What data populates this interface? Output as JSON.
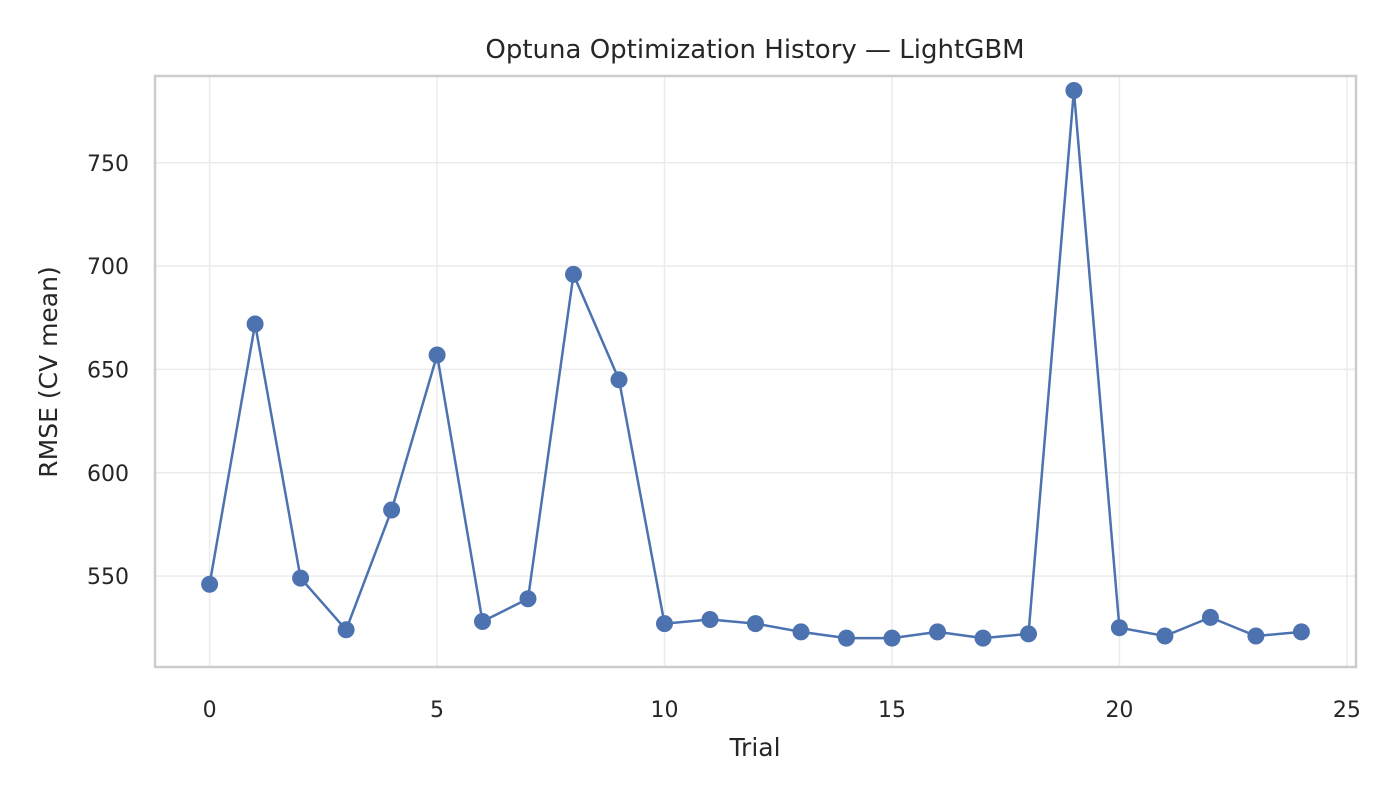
{
  "chart_data": {
    "type": "line",
    "title": "Optuna Optimization History — LightGBM",
    "xlabel": "Trial",
    "ylabel": "RMSE (CV mean)",
    "xlim": [
      -1.2,
      25.2
    ],
    "ylim": [
      506,
      792
    ],
    "xticks": [
      0,
      5,
      10,
      15,
      20,
      25
    ],
    "yticks": [
      550,
      600,
      650,
      700,
      750
    ],
    "grid": true,
    "color": "#4c72b0",
    "series": [
      {
        "x": [
          0,
          1,
          2,
          3,
          4,
          5,
          6,
          7,
          8,
          9,
          10,
          11,
          12,
          13,
          14,
          15,
          16,
          17,
          18,
          19,
          20,
          21,
          22,
          23,
          24
        ],
        "values": [
          546,
          672,
          549,
          524,
          582,
          657,
          528,
          539,
          696,
          645,
          527,
          529,
          527,
          523,
          520,
          520,
          523,
          520,
          522,
          785,
          525,
          521,
          530,
          521,
          523
        ]
      }
    ]
  }
}
